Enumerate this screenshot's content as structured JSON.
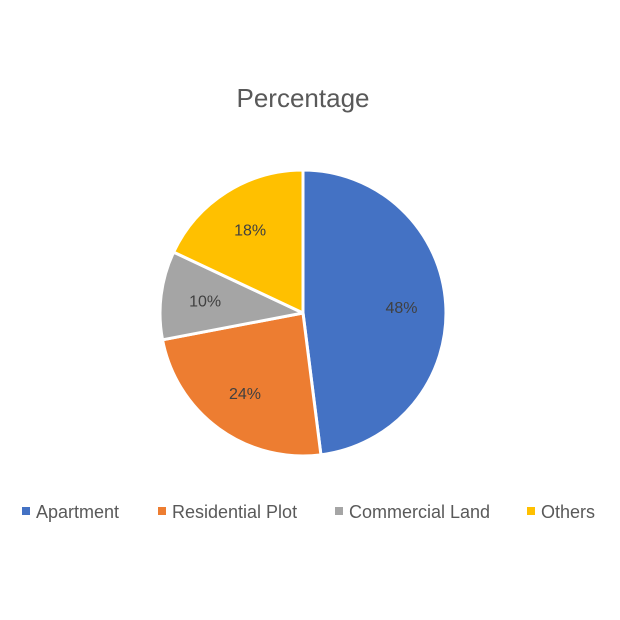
{
  "chart_data": {
    "type": "pie",
    "title": "Percentage",
    "categories": [
      "Apartment",
      "Residential Plot",
      "Commercial Land",
      "Others"
    ],
    "values": [
      48,
      24,
      10,
      18
    ],
    "data_labels": [
      "48%",
      "24%",
      "10%",
      "18%"
    ],
    "colors": [
      "#4472C4",
      "#ED7D31",
      "#A5A5A5",
      "#FFC000"
    ],
    "start_angle_deg": 0,
    "direction": "clockwise",
    "legend_position": "bottom"
  }
}
